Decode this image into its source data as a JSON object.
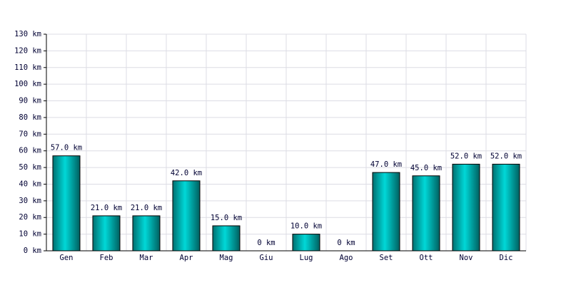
{
  "chart_data": {
    "type": "bar",
    "categories": [
      "Gen",
      "Feb",
      "Mar",
      "Apr",
      "Mag",
      "Giu",
      "Lug",
      "Ago",
      "Set",
      "Ott",
      "Nov",
      "Dic"
    ],
    "values": [
      57,
      21,
      21,
      42,
      15,
      0,
      10,
      0,
      47,
      45,
      52,
      52
    ],
    "value_labels": [
      "57.0 km",
      "21.0 km",
      "21.0 km",
      "42.0 km",
      "15.0 km",
      "0 km",
      "10.0 km",
      "0 km",
      "47.0 km",
      "45.0 km",
      "52.0 km",
      "52.0 km"
    ],
    "color": "#00d8d8",
    "ylim": [
      0,
      130
    ],
    "yticks": [
      {
        "value": 0,
        "label": "0 km"
      },
      {
        "value": 10,
        "label": "10 km"
      },
      {
        "value": 20,
        "label": "20 km"
      },
      {
        "value": 30,
        "label": "30 km"
      },
      {
        "value": 40,
        "label": "40 km"
      },
      {
        "value": 50,
        "label": "50 km"
      },
      {
        "value": 60,
        "label": "60 km"
      },
      {
        "value": 70,
        "label": "70 km"
      },
      {
        "value": 80,
        "label": "80 km"
      },
      {
        "value": 90,
        "label": "90 km"
      },
      {
        "value": 100,
        "label": "100 km"
      },
      {
        "value": 110,
        "label": "110 km"
      },
      {
        "value": 120,
        "label": "120 km"
      },
      {
        "value": 130,
        "label": "130 km"
      }
    ],
    "grid": true
  }
}
